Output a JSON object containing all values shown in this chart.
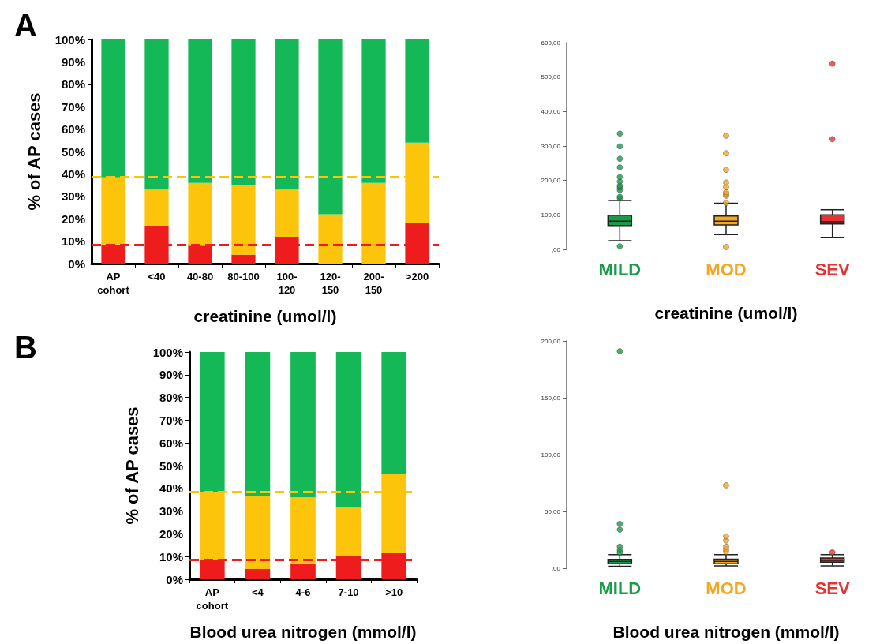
{
  "chart_data": [
    {
      "type": "bar",
      "stacked": true,
      "annotations": [
        "A"
      ],
      "xlabel": "creatinine (umol/l)",
      "ylabel": "% of AP cases",
      "categories": [
        "AP\ncohort",
        "<40",
        "40-80",
        "80-100",
        "100-\n120",
        "120-\n150",
        "200-\n150",
        ">200"
      ],
      "series": [
        {
          "color": "#ee1c1c",
          "values": [
            8.5,
            17,
            8,
            4,
            12,
            0,
            0,
            18
          ]
        },
        {
          "color": "#fcc50c",
          "values": [
            30,
            16,
            28,
            31,
            21,
            22,
            36,
            36
          ]
        },
        {
          "color": "#14b856",
          "values": [
            61.5,
            67,
            64,
            65,
            67,
            78,
            64,
            46
          ]
        }
      ],
      "ylim": [
        0,
        100
      ],
      "yticks": [
        {
          "value": 0,
          "label": "0%"
        },
        {
          "value": 10,
          "label": "10%"
        },
        {
          "value": 20,
          "label": "20%"
        },
        {
          "value": 30,
          "label": "30%"
        },
        {
          "value": 40,
          "label": "40%"
        },
        {
          "value": 50,
          "label": "50%"
        },
        {
          "value": 60,
          "label": "60%"
        },
        {
          "value": 70,
          "label": "70%"
        },
        {
          "value": 80,
          "label": "80%"
        },
        {
          "value": 90,
          "label": "90%"
        },
        {
          "value": 100,
          "label": "100%"
        }
      ],
      "ref_lines": [
        {
          "axis": "y",
          "value": 8.5,
          "color": "#ee1c1c",
          "line_style": "dashed"
        },
        {
          "axis": "y",
          "value": 38.5,
          "color": "#fcc50c",
          "line_style": "dashed"
        }
      ]
    },
    {
      "type": "box",
      "xlabel": "creatinine (umol/l)",
      "categories": [
        "MILD",
        "MOD",
        "SEV"
      ],
      "colors": [
        "#1a9b4a",
        "#f5a623",
        "#e53333"
      ],
      "boxes": [
        {
          "low": 25,
          "q1": 69,
          "median": 82,
          "q3": 99,
          "high": 142,
          "outliers": [
            9,
            149,
            153,
            172,
            179,
            185,
            197,
            210,
            238,
            263,
            299,
            336
          ]
        },
        {
          "low": 43,
          "q1": 71,
          "median": 82,
          "q3": 97,
          "high": 134,
          "outliers": [
            7,
            135,
            156,
            161,
            166,
            181,
            194,
            231,
            279,
            330
          ]
        },
        {
          "low": 35,
          "q1": 74,
          "median": 80,
          "q3": 100,
          "high": 115,
          "outliers": [
            320,
            539
          ]
        }
      ],
      "ylim": [
        0,
        600
      ],
      "yticks": [
        {
          "value": 0,
          "label": ",00"
        },
        {
          "value": 100,
          "label": "100,00"
        },
        {
          "value": 200,
          "label": "200,00"
        },
        {
          "value": 300,
          "label": "300,00"
        },
        {
          "value": 400,
          "label": "400,00"
        },
        {
          "value": 500,
          "label": "500,00"
        },
        {
          "value": 600,
          "label": "600,00"
        }
      ]
    },
    {
      "type": "bar",
      "stacked": true,
      "annotations": [
        "B"
      ],
      "xlabel": "Blood urea nitrogen (mmol/l)",
      "ylabel": "% of AP cases",
      "categories": [
        "AP\ncohort",
        "<4",
        "4-6",
        "7-10",
        ">10"
      ],
      "series": [
        {
          "color": "#ee1c1c",
          "values": [
            8.5,
            4.5,
            7,
            10.5,
            11.5
          ]
        },
        {
          "color": "#fcc50c",
          "values": [
            30,
            32,
            29,
            21,
            35
          ]
        },
        {
          "color": "#14b856",
          "values": [
            61.5,
            63.5,
            64,
            68.5,
            53.5
          ]
        }
      ],
      "ylim": [
        0,
        100
      ],
      "yticks": [
        {
          "value": 0,
          "label": "0%"
        },
        {
          "value": 10,
          "label": "10%"
        },
        {
          "value": 20,
          "label": "20%"
        },
        {
          "value": 30,
          "label": "30%"
        },
        {
          "value": 40,
          "label": "40%"
        },
        {
          "value": 50,
          "label": "50%"
        },
        {
          "value": 60,
          "label": "60%"
        },
        {
          "value": 70,
          "label": "70%"
        },
        {
          "value": 80,
          "label": "80%"
        },
        {
          "value": 90,
          "label": "90%"
        },
        {
          "value": 100,
          "label": "100%"
        }
      ],
      "ref_lines": [
        {
          "axis": "y",
          "value": 8.5,
          "color": "#ee1c1c",
          "line_style": "dashed"
        },
        {
          "axis": "y",
          "value": 38.5,
          "color": "#fcc50c",
          "line_style": "dashed"
        }
      ]
    },
    {
      "type": "box",
      "xlabel": "Blood urea nitrogen (mmol/l)",
      "categories": [
        "MILD",
        "MOD",
        "SEV"
      ],
      "colors": [
        "#1a9b4a",
        "#f5a623",
        "#e53333"
      ],
      "boxes": [
        {
          "low": 1.8,
          "q1": 4,
          "median": 6,
          "q3": 7.8,
          "high": 12,
          "outliers": [
            13.8,
            16,
            19,
            34,
            39,
            191
          ]
        },
        {
          "low": 2,
          "q1": 4,
          "median": 6,
          "q3": 8,
          "high": 12,
          "outliers": [
            14.5,
            16.7,
            19,
            24.5,
            28,
            73
          ]
        },
        {
          "low": 2,
          "q1": 5.3,
          "median": 7,
          "q3": 9,
          "high": 12,
          "outliers": [
            14
          ]
        }
      ],
      "ylim": [
        0,
        200
      ],
      "yticks": [
        {
          "value": 0,
          "label": ",00"
        },
        {
          "value": 50,
          "label": "50,00"
        },
        {
          "value": 100,
          "label": "100,00"
        },
        {
          "value": 150,
          "label": "150,00"
        },
        {
          "value": 200,
          "label": "200,00"
        }
      ]
    }
  ]
}
